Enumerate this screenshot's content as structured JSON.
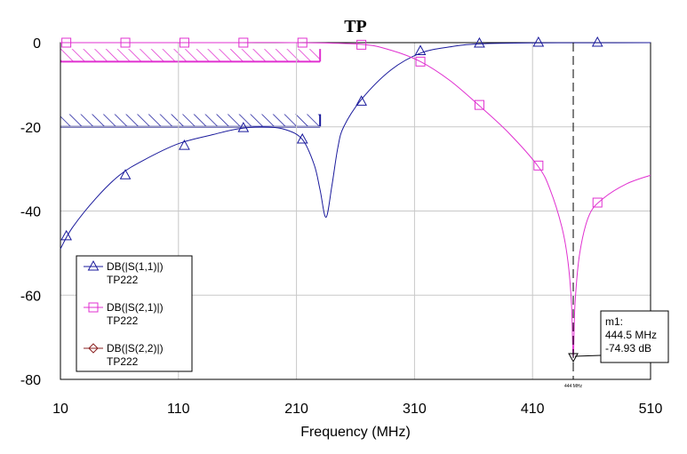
{
  "chart_data": {
    "type": "line",
    "title": "TP",
    "xlabel": "Frequency (MHz)",
    "ylabel": "",
    "xlim": [
      10,
      510
    ],
    "ylim": [
      -80,
      0
    ],
    "xticks": [
      10,
      110,
      210,
      310,
      410,
      510
    ],
    "yticks": [
      0,
      -20,
      -40,
      -60,
      -80
    ],
    "grid": true,
    "legend_position": "bottom-left",
    "series": [
      {
        "name": "DB(|S(1,1)|)",
        "subname": "TP222",
        "color": "#1a1a9c",
        "marker": "triangle-up",
        "x": [
          10,
          20,
          40,
          60,
          80,
          110,
          140,
          160,
          180,
          200,
          215,
          225,
          230,
          235,
          240,
          245,
          250,
          265,
          290,
          315,
          340,
          365,
          415,
          465,
          510
        ],
        "y": [
          -49,
          -44,
          -37,
          -31.5,
          -28,
          -24,
          -21.8,
          -20.5,
          -20,
          -20.6,
          -23,
          -29,
          -35,
          -41.5,
          -34,
          -25,
          -20,
          -13.5,
          -6.5,
          -2.5,
          -1,
          -0.3,
          -0.05,
          -0.02,
          -0.01
        ],
        "markers_x": [
          15,
          65,
          115,
          165,
          215,
          265,
          315,
          365,
          415,
          465
        ],
        "markers_y": [
          -46,
          -31.5,
          -24.5,
          -20.3,
          -23,
          -14,
          -2,
          -0.2,
          0,
          0
        ]
      },
      {
        "name": "DB(|S(2,1)|)",
        "subname": "TP222",
        "color": "#e030d0",
        "marker": "square",
        "x": [
          10,
          60,
          110,
          160,
          210,
          265,
          290,
          315,
          340,
          365,
          390,
          415,
          425,
          435,
          440,
          443,
          444.5,
          446,
          450,
          458,
          470,
          490,
          510
        ],
        "y": [
          0,
          0,
          0,
          0,
          0,
          -0.4,
          -1.8,
          -4.5,
          -9,
          -15,
          -21.5,
          -29.5,
          -35,
          -44,
          -52,
          -62,
          -74.93,
          -62,
          -50,
          -41,
          -37,
          -33.5,
          -31.5
        ],
        "markers_x": [
          15,
          65,
          115,
          165,
          215,
          265,
          315,
          365,
          415,
          465
        ],
        "markers_y": [
          0,
          0,
          0,
          0,
          0,
          -0.5,
          -4.5,
          -14.8,
          -29.2,
          -38
        ]
      },
      {
        "name": "DB(|S(2,2)|)",
        "subname": "TP222",
        "color": "#8b2222",
        "marker": "diamond",
        "x": [],
        "y": []
      }
    ],
    "spec_regions": [
      {
        "color": "#e030d0",
        "x": [
          10,
          230
        ],
        "y": [
          -4.5,
          -1.5
        ]
      },
      {
        "color": "#1a1a9c",
        "x": [
          10,
          230
        ],
        "y": [
          -20,
          -17
        ]
      }
    ],
    "marker": {
      "name": "m1:",
      "freq_text": "444.5 MHz",
      "value_text": "-74.93 dB",
      "x": 444.5,
      "y": -74.93,
      "axis_label": "444 MHz"
    }
  }
}
